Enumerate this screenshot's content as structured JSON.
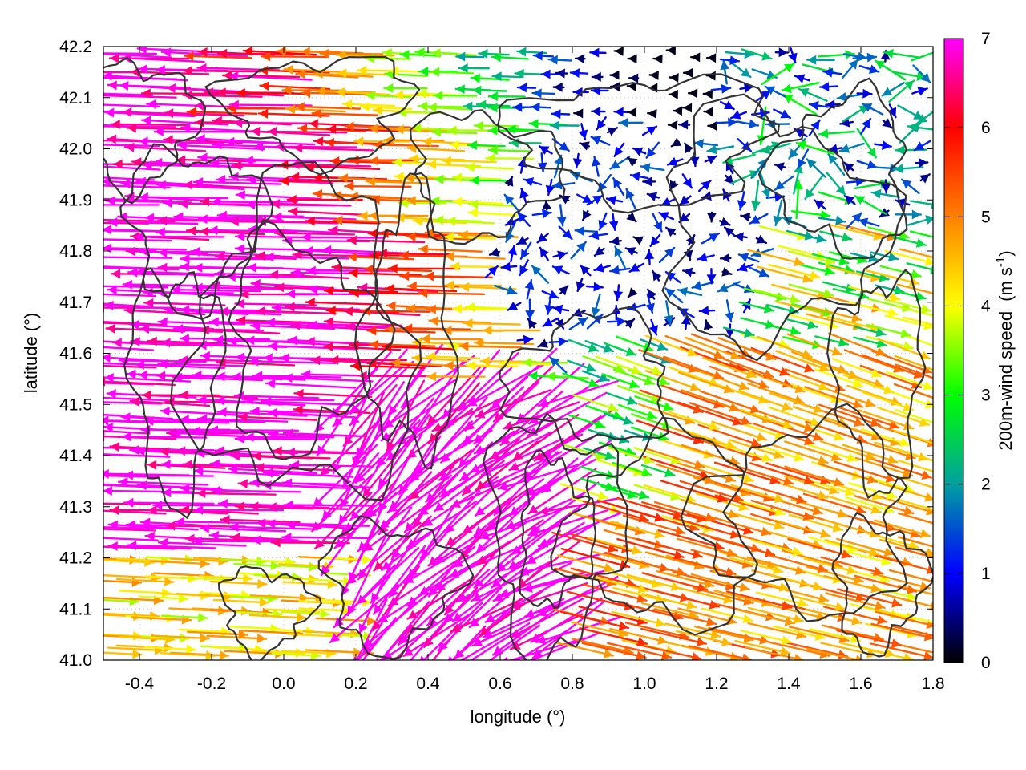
{
  "chart_data": {
    "type": "vector-field",
    "xlabel": "longitude (°)",
    "ylabel": "latitude (°)",
    "xlim": [
      -0.5,
      1.8
    ],
    "ylim": [
      41.0,
      42.2
    ],
    "xticks": [
      "-0.4",
      "-0.2",
      "0.0",
      "0.2",
      "0.4",
      "0.6",
      "0.8",
      "1.0",
      "1.2",
      "1.4",
      "1.6",
      "1.8"
    ],
    "xtick_values": [
      -0.4,
      -0.2,
      0.0,
      0.2,
      0.4,
      0.6,
      0.8,
      1.0,
      1.2,
      1.4,
      1.6,
      1.8
    ],
    "yticks": [
      "41.0",
      "41.1",
      "41.2",
      "41.3",
      "41.4",
      "41.5",
      "41.6",
      "41.7",
      "41.8",
      "41.9",
      "42.0",
      "42.1",
      "42.2"
    ],
    "ytick_values": [
      41.0,
      41.1,
      41.2,
      41.3,
      41.4,
      41.5,
      41.6,
      41.7,
      41.8,
      41.9,
      42.0,
      42.1,
      42.2
    ],
    "grid": true,
    "colorbar": {
      "label": "200m-wind speed",
      "unit_prefix": "(m s",
      "unit_exp": "-1",
      "unit_suffix": ")",
      "range": [
        0,
        7
      ],
      "ticks": [
        "0",
        "1",
        "2",
        "3",
        "4",
        "5",
        "6",
        "7"
      ],
      "tick_values": [
        0,
        1,
        2,
        3,
        4,
        5,
        6,
        7
      ],
      "palette": [
        "#000000",
        "#0000ff",
        "#00a0a0",
        "#00ff00",
        "#ffff00",
        "#ff8000",
        "#ff0000",
        "#ff00ff"
      ]
    },
    "contour_color": "#333333",
    "field_description_regions": [
      {
        "lon": [
          -0.5,
          0.4
        ],
        "lat": [
          41.2,
          42.2
        ],
        "direction": "westward",
        "speed": 7
      },
      {
        "lon": [
          -0.5,
          0.2
        ],
        "lat": [
          41.0,
          41.2
        ],
        "direction": "eastward",
        "speed": 4
      },
      {
        "lon": [
          0.2,
          0.8
        ],
        "lat": [
          41.0,
          41.5
        ],
        "direction": "north-westward",
        "speed": 7
      },
      {
        "lon": [
          0.8,
          1.8
        ],
        "lat": [
          41.0,
          41.6
        ],
        "direction": "east-north-eastward",
        "speed": 5
      },
      {
        "lon": [
          0.6,
          1.3
        ],
        "lat": [
          41.6,
          42.1
        ],
        "direction": "variable",
        "speed": 1
      }
    ]
  }
}
